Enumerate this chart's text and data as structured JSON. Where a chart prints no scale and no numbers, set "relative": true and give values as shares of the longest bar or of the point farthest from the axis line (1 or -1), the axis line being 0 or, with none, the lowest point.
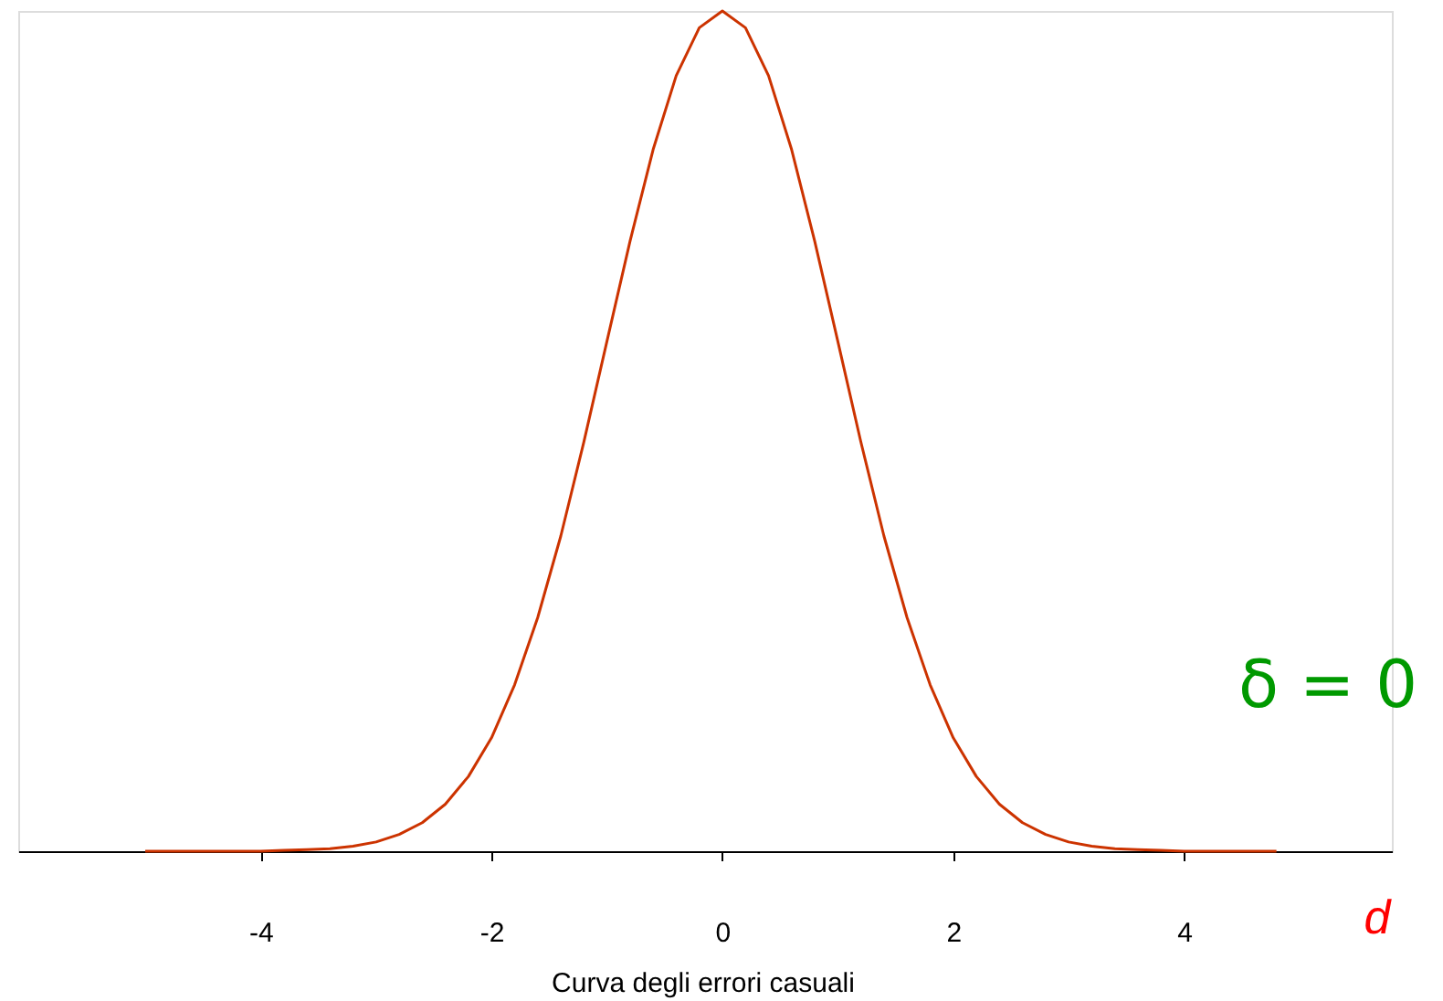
{
  "chart_data": {
    "type": "line",
    "relative": true,
    "x": [
      -5.0,
      -4.8,
      -4.6,
      -4.4,
      -4.2,
      -4.0,
      -3.8,
      -3.6,
      -3.4,
      -3.2,
      -3.0,
      -2.8,
      -2.6,
      -2.4,
      -2.2,
      -2.0,
      -1.8,
      -1.6,
      -1.4,
      -1.2,
      -1.0,
      -0.8,
      -0.6,
      -0.4,
      -0.2,
      0,
      0.2,
      0.4,
      0.6,
      0.8,
      1.0,
      1.2,
      1.4,
      1.6,
      1.8,
      2.0,
      2.2,
      2.4,
      2.6,
      2.8,
      3.0,
      3.2,
      3.4,
      3.6,
      3.8,
      4.0,
      4.2,
      4.4,
      4.6,
      4.8
    ],
    "series": [
      {
        "color": "#cc3300",
        "values": [
          0,
          0,
          0,
          0,
          0,
          0,
          0.001,
          0.002,
          0.003,
          0.006,
          0.011,
          0.02,
          0.034,
          0.056,
          0.089,
          0.135,
          0.198,
          0.278,
          0.375,
          0.487,
          0.607,
          0.726,
          0.835,
          0.923,
          0.98,
          1,
          0.98,
          0.923,
          0.835,
          0.726,
          0.607,
          0.487,
          0.375,
          0.278,
          0.198,
          0.135,
          0.089,
          0.056,
          0.034,
          0.02,
          0.011,
          0.006,
          0.003,
          0.002,
          0.001,
          0,
          0,
          0,
          0,
          0
        ]
      }
    ],
    "xlim": [
      -6.1,
      5.8
    ],
    "xticks": [
      -4,
      -2,
      0,
      2,
      4
    ],
    "xlabel": "d",
    "grid": false,
    "legend": false,
    "marker": "none",
    "line_style": "solid",
    "annotations": [
      "δ = 0",
      "Curva degli errori casuali"
    ]
  }
}
